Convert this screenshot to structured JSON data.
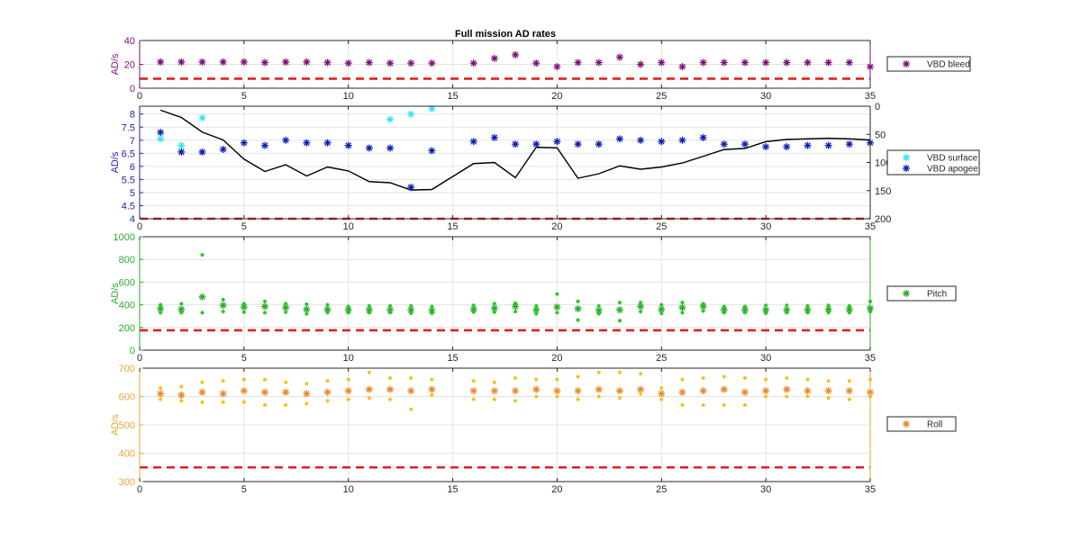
{
  "colors": {
    "bleed": "#7E0F7E",
    "surface": "#33E6F2",
    "apogee": "#0A1FB8",
    "depth_line": "#000000",
    "pitch": "#2DAA2D",
    "pitch_dots": "#22CC22",
    "roll": "#E8892A",
    "roll_dots": "#F5C418",
    "threshold": "#E02020",
    "grid": "#E3E3E3",
    "axis_bleed": "#7E0F7E",
    "axis_apogee": "#2222AA",
    "axis_pitch": "#2DAA2D",
    "axis_roll": "#E8A532"
  },
  "chart_data": [
    {
      "type": "scatter",
      "title": "Full mission AD rates",
      "ylabel": "AD/s",
      "xlim": [
        0,
        35
      ],
      "ylim": [
        0,
        40
      ],
      "xticks": [
        "0",
        "5",
        "10",
        "15",
        "20",
        "25",
        "30",
        "35"
      ],
      "yticks": [
        "0",
        "20",
        "40"
      ],
      "legend_position": "outside-right",
      "grid": true,
      "series": [
        {
          "name": "VBD bleed",
          "marker": "asterisk",
          "x": [
            1,
            2,
            3,
            4,
            5,
            6,
            7,
            8,
            9,
            10,
            11,
            12,
            13,
            14,
            16,
            17,
            18,
            19,
            20,
            21,
            22,
            23,
            24,
            25,
            26,
            27,
            28,
            29,
            30,
            31,
            32,
            33,
            34,
            35
          ],
          "y": [
            22,
            22,
            22,
            22,
            22,
            21.5,
            22,
            22,
            21.5,
            21,
            21.5,
            21,
            21,
            21,
            21,
            25,
            28,
            21,
            18,
            21.5,
            21.5,
            26,
            20,
            21.5,
            18,
            21.5,
            21.5,
            21.5,
            21.5,
            21.5,
            21.5,
            21.5,
            21.5,
            18
          ]
        }
      ],
      "threshold": 8
    },
    {
      "type": "scatter",
      "ylabel": "AD/s",
      "xlim": [
        0,
        35
      ],
      "ylim": [
        4,
        8.3
      ],
      "xticks": [
        "0",
        "5",
        "10",
        "15",
        "20",
        "25",
        "30",
        "35"
      ],
      "yticks": [
        "4",
        "4.5",
        "5",
        "5.5",
        "6",
        "6.5",
        "7",
        "7.5",
        "8"
      ],
      "y2lim": [
        0,
        200
      ],
      "y2ticks": [
        "0",
        "50",
        "100",
        "150",
        "200"
      ],
      "y2_reversed": true,
      "legend_position": "outside-right",
      "grid": true,
      "series": [
        {
          "name": "VBD surface",
          "marker": "asterisk",
          "x": [
            1,
            2,
            3,
            12,
            13,
            14
          ],
          "y": [
            7.05,
            6.8,
            7.85,
            7.8,
            8.0,
            8.2
          ]
        },
        {
          "name": "VBD apogee",
          "marker": "asterisk",
          "x": [
            1,
            2,
            3,
            4,
            5,
            6,
            7,
            8,
            9,
            10,
            11,
            12,
            13,
            14,
            16,
            17,
            18,
            19,
            20,
            21,
            22,
            23,
            24,
            25,
            26,
            27,
            28,
            29,
            30,
            31,
            32,
            33,
            34,
            35
          ],
          "y": [
            7.3,
            6.55,
            6.55,
            6.65,
            6.9,
            6.8,
            7.0,
            6.9,
            6.9,
            6.8,
            6.7,
            6.7,
            5.2,
            6.6,
            6.95,
            7.1,
            6.85,
            6.85,
            6.95,
            6.85,
            6.85,
            7.05,
            7.0,
            6.95,
            7.0,
            7.1,
            6.85,
            6.85,
            6.75,
            6.75,
            6.8,
            6.8,
            6.85,
            6.9
          ]
        },
        {
          "style": "line",
          "axis": "right",
          "x": [
            1,
            2,
            3,
            4,
            5,
            6,
            7,
            8,
            9,
            10,
            11,
            12,
            13,
            14,
            15,
            16,
            17,
            18,
            19,
            20,
            21,
            22,
            23,
            24,
            25,
            26,
            27,
            28,
            29,
            30,
            31,
            32,
            33,
            34,
            35
          ],
          "y": [
            7,
            20,
            46,
            60,
            94,
            116,
            104,
            124,
            108,
            115,
            134,
            136,
            149,
            148,
            125,
            102,
            100,
            127,
            73,
            74,
            128,
            120,
            106,
            112,
            108,
            101,
            89,
            77,
            75,
            63,
            59,
            58,
            57,
            58,
            60
          ]
        }
      ],
      "threshold": 4
    },
    {
      "type": "scatter",
      "ylabel": "AD/s",
      "xlim": [
        0,
        35
      ],
      "ylim": [
        0,
        1000
      ],
      "xticks": [
        "0",
        "5",
        "10",
        "15",
        "20",
        "25",
        "30",
        "35"
      ],
      "yticks": [
        "0",
        "200",
        "400",
        "600",
        "800",
        "1000"
      ],
      "legend_position": "outside-right",
      "grid": true,
      "series": [
        {
          "name": "Pitch",
          "marker": "asterisk",
          "x": [
            1,
            2,
            3,
            4,
            5,
            6,
            7,
            8,
            9,
            10,
            11,
            12,
            13,
            14,
            16,
            17,
            18,
            19,
            20,
            21,
            22,
            23,
            24,
            25,
            26,
            27,
            28,
            29,
            30,
            31,
            32,
            33,
            34,
            35
          ],
          "y": [
            365,
            360,
            470,
            395,
            380,
            385,
            375,
            360,
            360,
            355,
            355,
            355,
            355,
            350,
            360,
            370,
            385,
            355,
            380,
            365,
            350,
            355,
            385,
            360,
            375,
            385,
            355,
            355,
            355,
            355,
            355,
            360,
            360,
            370
          ]
        },
        {
          "marker": "dot",
          "x": [
            1,
            1,
            2,
            2,
            3,
            3,
            4,
            4,
            5,
            5,
            6,
            6,
            7,
            7,
            8,
            8,
            9,
            9,
            10,
            10,
            11,
            11,
            12,
            12,
            13,
            13,
            14,
            14,
            16,
            16,
            17,
            17,
            18,
            18,
            19,
            19,
            20,
            20,
            21,
            21,
            22,
            22,
            23,
            23,
            24,
            24,
            25,
            25,
            26,
            26,
            27,
            27,
            28,
            28,
            29,
            29,
            30,
            30,
            31,
            31,
            32,
            32,
            33,
            33,
            34,
            34,
            35,
            35
          ],
          "y": [
            400,
            330,
            410,
            330,
            840,
            330,
            445,
            340,
            410,
            335,
            430,
            330,
            410,
            335,
            405,
            320,
            400,
            330,
            385,
            330,
            390,
            330,
            390,
            330,
            390,
            325,
            385,
            325,
            395,
            335,
            410,
            335,
            415,
            340,
            390,
            320,
            495,
            330,
            430,
            265,
            390,
            320,
            420,
            260,
            420,
            340,
            400,
            325,
            420,
            330,
            410,
            345,
            385,
            330,
            385,
            330,
            395,
            325,
            395,
            330,
            390,
            330,
            395,
            330,
            390,
            330,
            430,
            340
          ]
        }
      ],
      "threshold": 175
    },
    {
      "type": "scatter",
      "ylabel": "AD/s",
      "xlim": [
        0,
        35
      ],
      "ylim": [
        300,
        700
      ],
      "xticks": [
        "0",
        "5",
        "10",
        "15",
        "20",
        "25",
        "30",
        "35"
      ],
      "yticks": [
        "300",
        "400",
        "500",
        "600",
        "700"
      ],
      "legend_position": "outside-right",
      "grid": true,
      "series": [
        {
          "name": "Roll",
          "marker": "asterisk",
          "x": [
            1,
            2,
            3,
            4,
            5,
            6,
            7,
            8,
            9,
            10,
            11,
            12,
            13,
            14,
            16,
            17,
            18,
            19,
            20,
            21,
            22,
            23,
            24,
            25,
            26,
            27,
            28,
            29,
            30,
            31,
            32,
            33,
            34,
            35
          ],
          "y": [
            610,
            605,
            615,
            610,
            620,
            615,
            615,
            610,
            615,
            620,
            625,
            625,
            620,
            625,
            620,
            620,
            620,
            625,
            620,
            620,
            625,
            620,
            625,
            610,
            615,
            620,
            625,
            615,
            620,
            625,
            620,
            620,
            620,
            615
          ]
        },
        {
          "marker": "dot",
          "x": [
            1,
            1,
            2,
            2,
            3,
            3,
            4,
            4,
            5,
            5,
            6,
            6,
            7,
            7,
            8,
            8,
            9,
            9,
            10,
            10,
            11,
            11,
            12,
            12,
            13,
            13,
            14,
            14,
            16,
            16,
            17,
            17,
            18,
            18,
            19,
            19,
            20,
            20,
            21,
            21,
            22,
            22,
            23,
            23,
            24,
            24,
            25,
            25,
            26,
            26,
            27,
            27,
            28,
            28,
            29,
            29,
            30,
            30,
            31,
            31,
            32,
            32,
            33,
            33,
            34,
            34,
            35,
            35
          ],
          "y": [
            630,
            590,
            635,
            585,
            650,
            580,
            655,
            580,
            660,
            580,
            660,
            570,
            650,
            570,
            645,
            575,
            655,
            585,
            660,
            590,
            685,
            595,
            665,
            590,
            665,
            555,
            660,
            605,
            655,
            590,
            650,
            590,
            665,
            585,
            660,
            600,
            660,
            600,
            670,
            590,
            685,
            600,
            685,
            595,
            680,
            610,
            630,
            590,
            660,
            570,
            665,
            570,
            670,
            570,
            665,
            570,
            660,
            600,
            665,
            600,
            660,
            600,
            655,
            595,
            655,
            590,
            660,
            600
          ]
        }
      ],
      "threshold": 350
    }
  ]
}
